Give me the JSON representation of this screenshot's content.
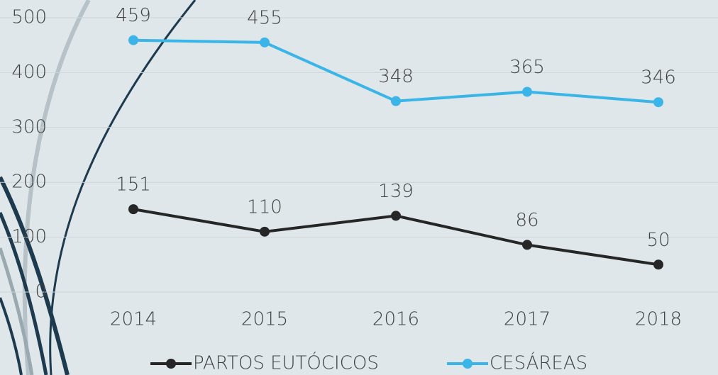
{
  "chart_data": {
    "type": "line",
    "categories": [
      "2014",
      "2015",
      "2016",
      "2017",
      "2018"
    ],
    "series": [
      {
        "name": "PARTOS EUTÓCICOS",
        "color": "#262626",
        "values": [
          151,
          110,
          139,
          86,
          50
        ]
      },
      {
        "name": "CESÁREAS",
        "color": "#3bb5e8",
        "values": [
          459,
          455,
          348,
          365,
          346
        ]
      }
    ],
    "ylim": [
      0,
      500
    ],
    "yticks": [
      0,
      100,
      200,
      300,
      400,
      500
    ],
    "grid": true,
    "legend": "bottom"
  }
}
